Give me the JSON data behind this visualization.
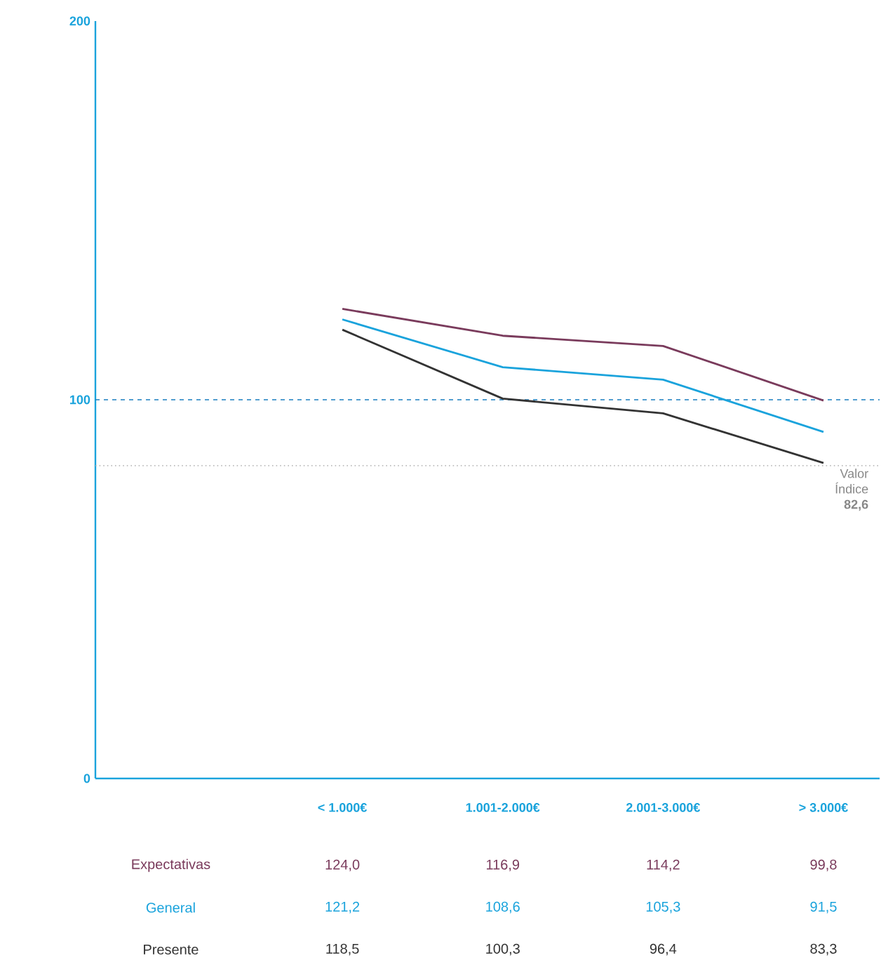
{
  "chart_data": {
    "type": "line",
    "categories": [
      "< 1.000€",
      "1.001-2.000€",
      "2.001-3.000€",
      "> 3.000€"
    ],
    "series": [
      {
        "name": "Expectativas",
        "color": "#7a3b5c",
        "values": [
          124.0,
          116.9,
          114.2,
          99.8
        ],
        "value_labels": [
          "124,0",
          "116,9",
          "114,2",
          "99,8"
        ]
      },
      {
        "name": "General",
        "color": "#1aa3dc",
        "values": [
          121.2,
          108.6,
          105.3,
          91.5
        ],
        "value_labels": [
          "121,2",
          "108,6",
          "105,3",
          "91,5"
        ]
      },
      {
        "name": "Presente",
        "color": "#333333",
        "values": [
          118.5,
          100.3,
          96.4,
          83.3
        ],
        "value_labels": [
          "118,5",
          "100,3",
          "96,4",
          "83,3"
        ]
      }
    ],
    "ylim": [
      0,
      200
    ],
    "yticks": [
      0,
      100,
      200
    ],
    "marker": "none",
    "line_style": "solid",
    "ref_lines": [
      {
        "axis": "y",
        "value": 100,
        "color": "#1a7fc0",
        "line_style": "dashed"
      },
      {
        "axis": "y",
        "value": 82.6,
        "label": "Valor Índice **82,6**",
        "color": "#b0b0b0",
        "line_style": "dotted"
      }
    ]
  }
}
